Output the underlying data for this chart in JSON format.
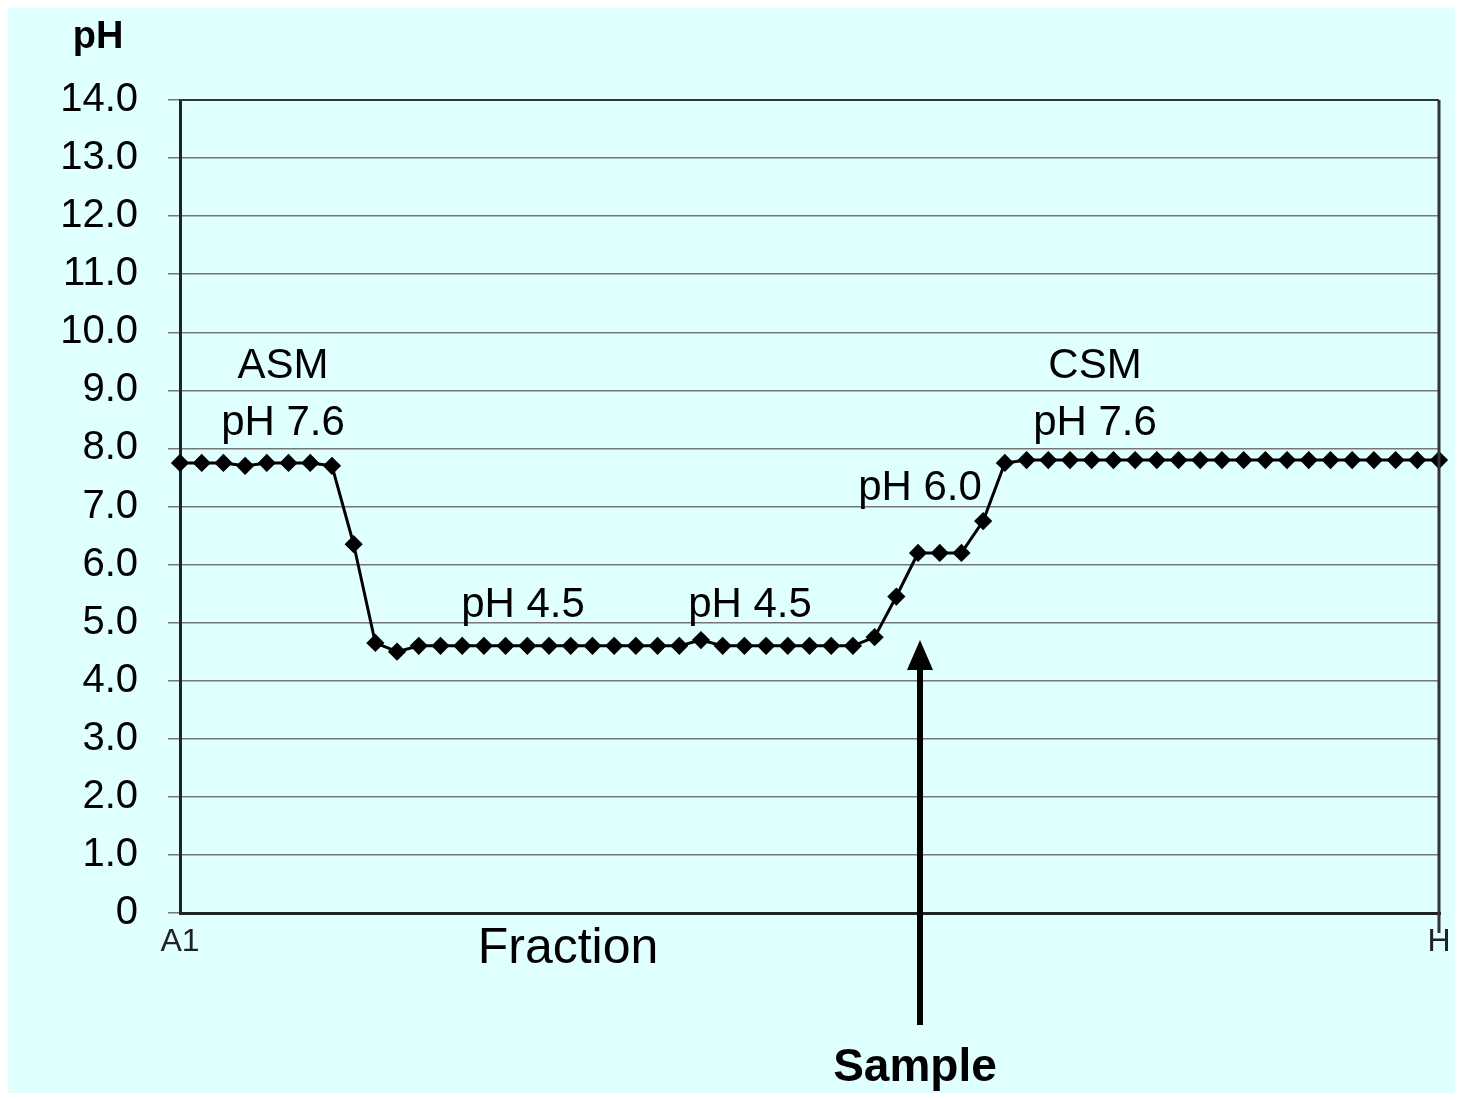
{
  "chart_data": {
    "type": "line",
    "ylabel": "pH",
    "xlabel": "Fraction",
    "categories": [
      "A1",
      null,
      null,
      null,
      null,
      null,
      null,
      null,
      null,
      null,
      null,
      null,
      null,
      null,
      null,
      null,
      null,
      null,
      null,
      null,
      null,
      null,
      null,
      null,
      null,
      null,
      null,
      null,
      null,
      null,
      null,
      null,
      null,
      null,
      null,
      null,
      null,
      null,
      null,
      null,
      null,
      null,
      null,
      null,
      null,
      null,
      null,
      null,
      null,
      null,
      null,
      null,
      null,
      null,
      null,
      null,
      null,
      null,
      "H"
    ],
    "series": [
      {
        "color": "#000000",
        "values": [
          7.75,
          7.75,
          7.75,
          7.7,
          7.75,
          7.75,
          7.75,
          7.7,
          6.35,
          4.65,
          4.5,
          4.6,
          4.6,
          4.6,
          4.6,
          4.6,
          4.6,
          4.6,
          4.6,
          4.6,
          4.6,
          4.6,
          4.6,
          4.6,
          4.7,
          4.6,
          4.6,
          4.6,
          4.6,
          4.6,
          4.6,
          4.6,
          4.75,
          5.45,
          6.2,
          6.2,
          6.2,
          6.75,
          7.75,
          7.8,
          7.8,
          7.8,
          7.8,
          7.8,
          7.8,
          7.8,
          7.8,
          7.8,
          7.8,
          7.8,
          7.8,
          7.8,
          7.8,
          7.8,
          7.8,
          7.8,
          7.8,
          7.8,
          7.8
        ]
      }
    ],
    "ylim": [
      0,
      14
    ],
    "yticks": [
      0,
      {
        "value": 1,
        "label": "1.0"
      },
      {
        "value": 2,
        "label": "2.0"
      },
      {
        "value": 3,
        "label": "3.0"
      },
      {
        "value": 4,
        "label": "4.0"
      },
      {
        "value": 5,
        "label": "5.0"
      },
      {
        "value": 6,
        "label": "6.0"
      },
      {
        "value": 7,
        "label": "7.0"
      },
      {
        "value": 8,
        "label": "8.0"
      },
      {
        "value": 9,
        "label": "9.0"
      },
      {
        "value": 10,
        "label": "10.0"
      },
      {
        "value": 11,
        "label": "11.0"
      },
      {
        "value": 12,
        "label": "12.0"
      },
      {
        "value": 13,
        "label": "13.0"
      },
      {
        "value": 14,
        "label": "14.0"
      }
    ],
    "grid": "y",
    "marker": "diamond",
    "line_style": "solid",
    "legend": false,
    "annotations": [
      "ASM",
      "pH 7.6",
      "pH 4.5",
      "pH 4.5",
      "pH 6.0",
      "CSM",
      "pH 7.6",
      "Sample"
    ]
  }
}
